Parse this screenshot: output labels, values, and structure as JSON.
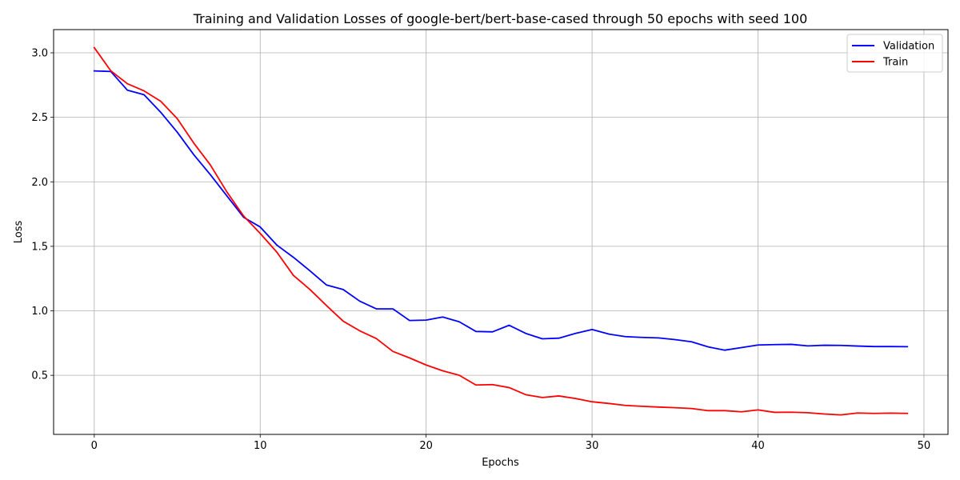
{
  "chart_data": {
    "type": "line",
    "title": "Training and Validation Losses of google-bert/bert-base-cased through 50 epochs with seed 100",
    "xlabel": "Epochs",
    "ylabel": "Loss",
    "xlim": [
      -2.45,
      51.45
    ],
    "ylim": [
      0.042,
      3.18
    ],
    "xticks": [
      0,
      10,
      20,
      30,
      40,
      50
    ],
    "yticks": [
      0.5,
      1.0,
      1.5,
      2.0,
      2.5,
      3.0
    ],
    "xtick_labels": [
      "0",
      "10",
      "20",
      "30",
      "40",
      "50"
    ],
    "ytick_labels": [
      "0.5",
      "1.0",
      "1.5",
      "2.0",
      "2.5",
      "3.0"
    ],
    "grid": true,
    "legend_position": "top-right",
    "x": [
      0,
      1,
      2,
      3,
      4,
      5,
      6,
      7,
      8,
      9,
      10,
      11,
      12,
      13,
      14,
      15,
      16,
      17,
      18,
      19,
      20,
      21,
      22,
      23,
      24,
      25,
      26,
      27,
      28,
      29,
      30,
      31,
      32,
      33,
      34,
      35,
      36,
      37,
      38,
      39,
      40,
      41,
      42,
      43,
      44,
      45,
      46,
      47,
      48,
      49
    ],
    "series": [
      {
        "name": "Validation",
        "color": "#0000ff",
        "values": [
          2.86,
          2.855,
          2.71,
          2.675,
          2.54,
          2.385,
          2.21,
          2.055,
          1.89,
          1.725,
          1.65,
          1.51,
          1.415,
          1.31,
          1.2,
          1.165,
          1.075,
          1.015,
          1.015,
          0.925,
          0.928,
          0.952,
          0.915,
          0.84,
          0.837,
          0.888,
          0.825,
          0.783,
          0.788,
          0.825,
          0.855,
          0.82,
          0.8,
          0.794,
          0.79,
          0.777,
          0.76,
          0.72,
          0.695,
          0.715,
          0.735,
          0.738,
          0.74,
          0.728,
          0.733,
          0.732,
          0.727,
          0.723,
          0.723,
          0.722
        ]
      },
      {
        "name": "Train",
        "color": "#ff0000",
        "values": [
          3.04,
          2.86,
          2.76,
          2.705,
          2.625,
          2.49,
          2.3,
          2.13,
          1.92,
          1.735,
          1.6,
          1.455,
          1.275,
          1.165,
          1.04,
          0.92,
          0.845,
          0.785,
          0.685,
          0.635,
          0.58,
          0.535,
          0.5,
          0.425,
          0.428,
          0.405,
          0.35,
          0.328,
          0.34,
          0.32,
          0.295,
          0.282,
          0.267,
          0.26,
          0.254,
          0.249,
          0.243,
          0.226,
          0.226,
          0.217,
          0.232,
          0.213,
          0.214,
          0.21,
          0.2,
          0.193,
          0.208,
          0.205,
          0.207,
          0.205
        ]
      }
    ]
  }
}
